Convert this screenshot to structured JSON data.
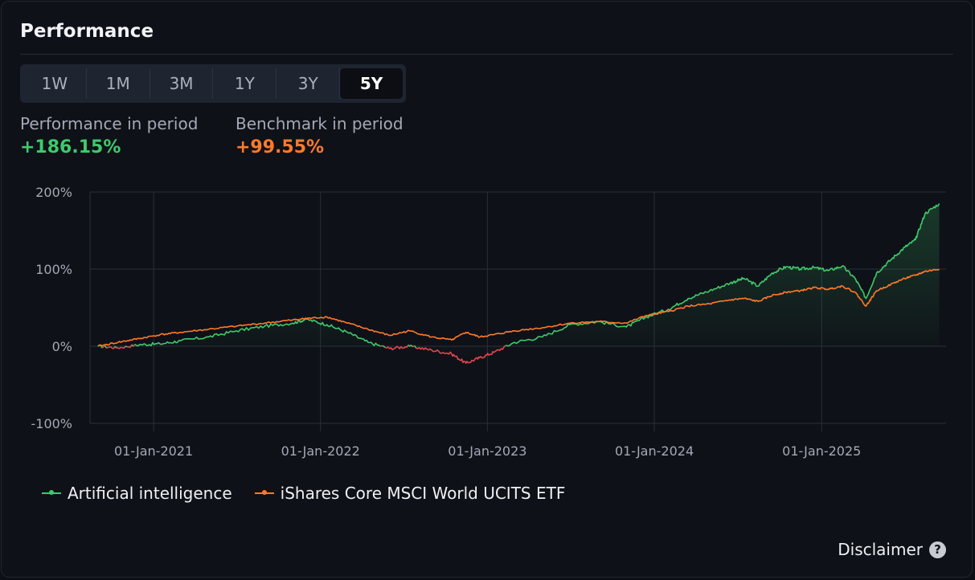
{
  "header": {
    "title": "Performance"
  },
  "tabs": [
    {
      "label": "1W",
      "active": false
    },
    {
      "label": "1M",
      "active": false
    },
    {
      "label": "3M",
      "active": false
    },
    {
      "label": "1Y",
      "active": false
    },
    {
      "label": "3Y",
      "active": false
    },
    {
      "label": "5Y",
      "active": true
    }
  ],
  "stats": {
    "performance_label": "Performance in period",
    "performance_value": "+186.15%",
    "benchmark_label": "Benchmark in period",
    "benchmark_value": "+99.55%"
  },
  "colors": {
    "positive": "#3fca6b",
    "benchmark": "#ff7a2a",
    "negative": "#e2454e",
    "grid": "#2a2e37"
  },
  "disclaimer": {
    "label": "Disclaimer",
    "icon": "help-circle-icon"
  },
  "chart_data": {
    "type": "line",
    "x_axis": {
      "type": "date",
      "min": "2020-08-15",
      "max": "2025-09-30"
    },
    "ylim": [
      -100,
      200
    ],
    "y_ticks": [
      200,
      100,
      0,
      -100
    ],
    "y_tick_labels": [
      "200%",
      "100%",
      "0%",
      "-100%"
    ],
    "x_ticks": [
      "2021-01-01",
      "2022-01-01",
      "2023-01-01",
      "2024-01-01",
      "2025-01-01"
    ],
    "x_tick_labels": [
      "01-Jan-2021",
      "01-Jan-2022",
      "01-Jan-2023",
      "01-Jan-2024",
      "01-Jan-2025"
    ],
    "grid": true,
    "legend_position": "bottom-left",
    "series": [
      {
        "name": "Artificial intelligence",
        "color": "#3fca6b",
        "x": [
          "2020-09-01",
          "2020-10-15",
          "2020-12-01",
          "2021-01-15",
          "2021-03-01",
          "2021-05-01",
          "2021-07-01",
          "2021-09-01",
          "2021-11-01",
          "2021-12-01",
          "2022-01-15",
          "2022-03-01",
          "2022-04-15",
          "2022-06-01",
          "2022-07-15",
          "2022-09-01",
          "2022-10-15",
          "2022-11-15",
          "2022-12-15",
          "2023-01-15",
          "2023-03-01",
          "2023-05-01",
          "2023-07-01",
          "2023-09-01",
          "2023-11-01",
          "2023-12-15",
          "2024-02-01",
          "2024-03-15",
          "2024-05-01",
          "2024-06-15",
          "2024-07-15",
          "2024-08-15",
          "2024-09-15",
          "2024-10-15",
          "2024-11-15",
          "2024-12-15",
          "2025-01-15",
          "2025-02-15",
          "2025-03-15",
          "2025-04-08",
          "2025-05-01",
          "2025-06-01",
          "2025-07-01",
          "2025-07-25",
          "2025-08-15",
          "2025-09-15"
        ],
        "values": [
          0,
          -2,
          2,
          3,
          7,
          12,
          20,
          26,
          30,
          35,
          28,
          18,
          5,
          -3,
          0,
          -5,
          -10,
          -22,
          -15,
          -8,
          5,
          12,
          28,
          32,
          25,
          38,
          48,
          62,
          72,
          82,
          88,
          78,
          95,
          103,
          100,
          102,
          98,
          104,
          88,
          62,
          95,
          112,
          128,
          138,
          172,
          185
        ]
      },
      {
        "name": "iShares Core MSCI World UCITS ETF",
        "color": "#ff7a2a",
        "x": [
          "2020-09-01",
          "2020-10-15",
          "2020-12-01",
          "2021-01-15",
          "2021-03-01",
          "2021-05-01",
          "2021-07-01",
          "2021-09-01",
          "2021-11-01",
          "2021-12-01",
          "2022-01-15",
          "2022-03-01",
          "2022-04-15",
          "2022-06-01",
          "2022-07-15",
          "2022-09-01",
          "2022-10-15",
          "2022-11-15",
          "2022-12-15",
          "2023-01-15",
          "2023-03-01",
          "2023-05-01",
          "2023-07-01",
          "2023-09-01",
          "2023-11-01",
          "2023-12-15",
          "2024-02-01",
          "2024-03-15",
          "2024-05-01",
          "2024-06-15",
          "2024-07-15",
          "2024-08-15",
          "2024-09-15",
          "2024-10-15",
          "2024-11-15",
          "2024-12-15",
          "2025-01-15",
          "2025-02-15",
          "2025-03-15",
          "2025-04-08",
          "2025-05-01",
          "2025-06-01",
          "2025-07-01",
          "2025-07-25",
          "2025-08-15",
          "2025-09-15"
        ],
        "values": [
          0,
          5,
          10,
          15,
          18,
          22,
          26,
          30,
          34,
          36,
          38,
          30,
          22,
          14,
          20,
          12,
          8,
          18,
          12,
          15,
          20,
          24,
          30,
          32,
          30,
          40,
          45,
          52,
          55,
          60,
          62,
          58,
          66,
          70,
          72,
          76,
          74,
          78,
          70,
          52,
          72,
          80,
          88,
          92,
          97,
          100
        ]
      }
    ]
  }
}
